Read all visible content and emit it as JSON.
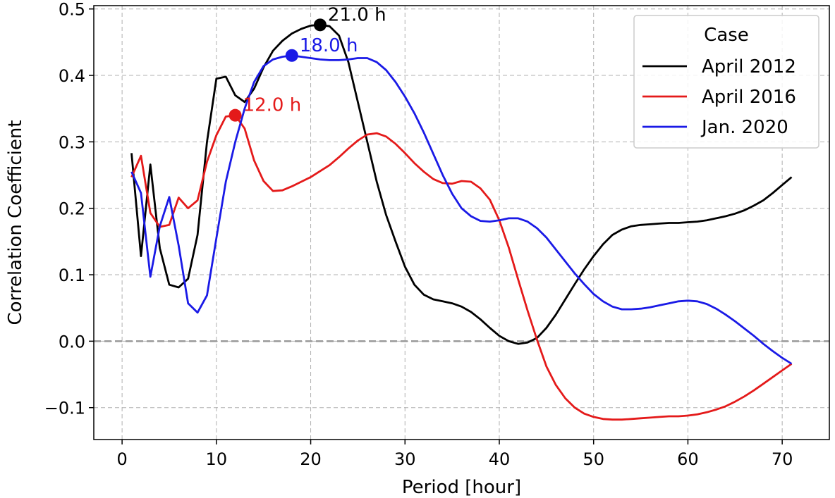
{
  "chart_data": {
    "type": "line",
    "title": "",
    "xlabel": "Period [hour]",
    "ylabel": "Correlation Coefficient",
    "xlim": [
      -3,
      75
    ],
    "ylim": [
      -0.148,
      0.505
    ],
    "xticks": [
      0,
      10,
      20,
      30,
      40,
      50,
      60,
      70
    ],
    "yticks": [
      -0.1,
      0.0,
      0.1,
      0.2,
      0.3,
      0.4,
      0.5
    ],
    "ytick_labels": [
      "−0.1",
      "0.0",
      "0.1",
      "0.2",
      "0.3",
      "0.4",
      "0.5"
    ],
    "grid": true,
    "zero_line": 0.0,
    "legend": {
      "title": "Case",
      "placement": "top-right"
    },
    "series": [
      {
        "name": "April 2012",
        "color": "#000000",
        "points": [
          [
            1,
            0.283
          ],
          [
            2,
            0.128
          ],
          [
            3,
            0.266
          ],
          [
            4,
            0.14
          ],
          [
            5,
            0.085
          ],
          [
            6,
            0.081
          ],
          [
            7,
            0.094
          ],
          [
            8,
            0.16
          ],
          [
            9,
            0.3
          ],
          [
            10,
            0.395
          ],
          [
            11,
            0.398
          ],
          [
            12,
            0.37
          ],
          [
            13,
            0.36
          ],
          [
            14,
            0.38
          ],
          [
            15,
            0.412
          ],
          [
            16,
            0.437
          ],
          [
            17,
            0.452
          ],
          [
            18,
            0.463
          ],
          [
            19,
            0.47
          ],
          [
            20,
            0.475
          ],
          [
            21,
            0.476
          ],
          [
            22,
            0.474
          ],
          [
            23,
            0.46
          ],
          [
            24,
            0.42
          ],
          [
            25,
            0.36
          ],
          [
            26,
            0.3
          ],
          [
            27,
            0.24
          ],
          [
            28,
            0.19
          ],
          [
            29,
            0.15
          ],
          [
            30,
            0.112
          ],
          [
            31,
            0.085
          ],
          [
            32,
            0.07
          ],
          [
            33,
            0.063
          ],
          [
            34,
            0.06
          ],
          [
            35,
            0.057
          ],
          [
            36,
            0.052
          ],
          [
            37,
            0.044
          ],
          [
            38,
            0.033
          ],
          [
            39,
            0.02
          ],
          [
            40,
            0.008
          ],
          [
            41,
            0.0
          ],
          [
            42,
            -0.004
          ],
          [
            43,
            -0.002
          ],
          [
            44,
            0.005
          ],
          [
            45,
            0.02
          ],
          [
            46,
            0.04
          ],
          [
            47,
            0.063
          ],
          [
            48,
            0.086
          ],
          [
            49,
            0.108
          ],
          [
            50,
            0.128
          ],
          [
            51,
            0.146
          ],
          [
            52,
            0.16
          ],
          [
            53,
            0.168
          ],
          [
            54,
            0.173
          ],
          [
            55,
            0.175
          ],
          [
            56,
            0.176
          ],
          [
            57,
            0.177
          ],
          [
            58,
            0.178
          ],
          [
            59,
            0.178
          ],
          [
            60,
            0.179
          ],
          [
            61,
            0.18
          ],
          [
            62,
            0.182
          ],
          [
            63,
            0.185
          ],
          [
            64,
            0.188
          ],
          [
            65,
            0.192
          ],
          [
            66,
            0.197
          ],
          [
            67,
            0.204
          ],
          [
            68,
            0.212
          ],
          [
            69,
            0.223
          ],
          [
            70,
            0.235
          ],
          [
            71,
            0.247
          ]
        ]
      },
      {
        "name": "April 2016",
        "color": "#e41a1a",
        "points": [
          [
            1,
            0.247
          ],
          [
            2,
            0.279
          ],
          [
            3,
            0.193
          ],
          [
            4,
            0.172
          ],
          [
            5,
            0.175
          ],
          [
            6,
            0.216
          ],
          [
            7,
            0.2
          ],
          [
            8,
            0.212
          ],
          [
            9,
            0.27
          ],
          [
            10,
            0.31
          ],
          [
            11,
            0.338
          ],
          [
            12,
            0.34
          ],
          [
            13,
            0.32
          ],
          [
            14,
            0.272
          ],
          [
            15,
            0.241
          ],
          [
            16,
            0.226
          ],
          [
            17,
            0.227
          ],
          [
            18,
            0.233
          ],
          [
            19,
            0.24
          ],
          [
            20,
            0.247
          ],
          [
            21,
            0.256
          ],
          [
            22,
            0.265
          ],
          [
            23,
            0.277
          ],
          [
            24,
            0.29
          ],
          [
            25,
            0.302
          ],
          [
            26,
            0.311
          ],
          [
            27,
            0.313
          ],
          [
            28,
            0.308
          ],
          [
            29,
            0.297
          ],
          [
            30,
            0.283
          ],
          [
            31,
            0.268
          ],
          [
            32,
            0.255
          ],
          [
            33,
            0.244
          ],
          [
            34,
            0.238
          ],
          [
            35,
            0.237
          ],
          [
            36,
            0.241
          ],
          [
            37,
            0.24
          ],
          [
            38,
            0.23
          ],
          [
            39,
            0.213
          ],
          [
            40,
            0.182
          ],
          [
            41,
            0.141
          ],
          [
            42,
            0.093
          ],
          [
            43,
            0.046
          ],
          [
            44,
            0.002
          ],
          [
            45,
            -0.038
          ],
          [
            46,
            -0.066
          ],
          [
            47,
            -0.086
          ],
          [
            48,
            -0.1
          ],
          [
            49,
            -0.109
          ],
          [
            50,
            -0.114
          ],
          [
            51,
            -0.117
          ],
          [
            52,
            -0.118
          ],
          [
            53,
            -0.118
          ],
          [
            54,
            -0.117
          ],
          [
            55,
            -0.116
          ],
          [
            56,
            -0.115
          ],
          [
            57,
            -0.114
          ],
          [
            58,
            -0.113
          ],
          [
            59,
            -0.113
          ],
          [
            60,
            -0.112
          ],
          [
            61,
            -0.11
          ],
          [
            62,
            -0.107
          ],
          [
            63,
            -0.103
          ],
          [
            64,
            -0.098
          ],
          [
            65,
            -0.091
          ],
          [
            66,
            -0.083
          ],
          [
            67,
            -0.074
          ],
          [
            68,
            -0.064
          ],
          [
            69,
            -0.054
          ],
          [
            70,
            -0.044
          ],
          [
            71,
            -0.034
          ]
        ]
      },
      {
        "name": "Jan. 2020",
        "color": "#1a1ae6",
        "points": [
          [
            1,
            0.255
          ],
          [
            2,
            0.223
          ],
          [
            3,
            0.097
          ],
          [
            4,
            0.173
          ],
          [
            5,
            0.217
          ],
          [
            6,
            0.144
          ],
          [
            7,
            0.057
          ],
          [
            8,
            0.043
          ],
          [
            9,
            0.069
          ],
          [
            10,
            0.155
          ],
          [
            11,
            0.24
          ],
          [
            12,
            0.3
          ],
          [
            13,
            0.35
          ],
          [
            14,
            0.39
          ],
          [
            15,
            0.414
          ],
          [
            16,
            0.424
          ],
          [
            17,
            0.428
          ],
          [
            18,
            0.43
          ],
          [
            19,
            0.428
          ],
          [
            20,
            0.426
          ],
          [
            21,
            0.424
          ],
          [
            22,
            0.423
          ],
          [
            23,
            0.423
          ],
          [
            24,
            0.424
          ],
          [
            25,
            0.426
          ],
          [
            26,
            0.426
          ],
          [
            27,
            0.42
          ],
          [
            28,
            0.408
          ],
          [
            29,
            0.39
          ],
          [
            30,
            0.368
          ],
          [
            31,
            0.343
          ],
          [
            32,
            0.314
          ],
          [
            33,
            0.282
          ],
          [
            34,
            0.25
          ],
          [
            35,
            0.222
          ],
          [
            36,
            0.2
          ],
          [
            37,
            0.188
          ],
          [
            38,
            0.181
          ],
          [
            39,
            0.18
          ],
          [
            40,
            0.182
          ],
          [
            41,
            0.185
          ],
          [
            42,
            0.185
          ],
          [
            43,
            0.18
          ],
          [
            44,
            0.17
          ],
          [
            45,
            0.156
          ],
          [
            46,
            0.138
          ],
          [
            47,
            0.12
          ],
          [
            48,
            0.102
          ],
          [
            49,
            0.086
          ],
          [
            50,
            0.071
          ],
          [
            51,
            0.06
          ],
          [
            52,
            0.052
          ],
          [
            53,
            0.048
          ],
          [
            54,
            0.048
          ],
          [
            55,
            0.049
          ],
          [
            56,
            0.051
          ],
          [
            57,
            0.054
          ],
          [
            58,
            0.057
          ],
          [
            59,
            0.06
          ],
          [
            60,
            0.061
          ],
          [
            61,
            0.06
          ],
          [
            62,
            0.056
          ],
          [
            63,
            0.049
          ],
          [
            64,
            0.04
          ],
          [
            65,
            0.03
          ],
          [
            66,
            0.019
          ],
          [
            67,
            0.008
          ],
          [
            68,
            -0.004
          ],
          [
            69,
            -0.015
          ],
          [
            70,
            -0.025
          ],
          [
            71,
            -0.034
          ]
        ]
      }
    ],
    "peaks": [
      {
        "series": "April 2012",
        "x": 21.0,
        "y": 0.476,
        "label": "21.0 h",
        "color": "#000000"
      },
      {
        "series": "April 2016",
        "x": 12.0,
        "y": 0.34,
        "label": "12.0 h",
        "color": "#e41a1a"
      },
      {
        "series": "Jan. 2020",
        "x": 18.0,
        "y": 0.43,
        "label": "18.0 h",
        "color": "#1a1ae6"
      }
    ]
  }
}
